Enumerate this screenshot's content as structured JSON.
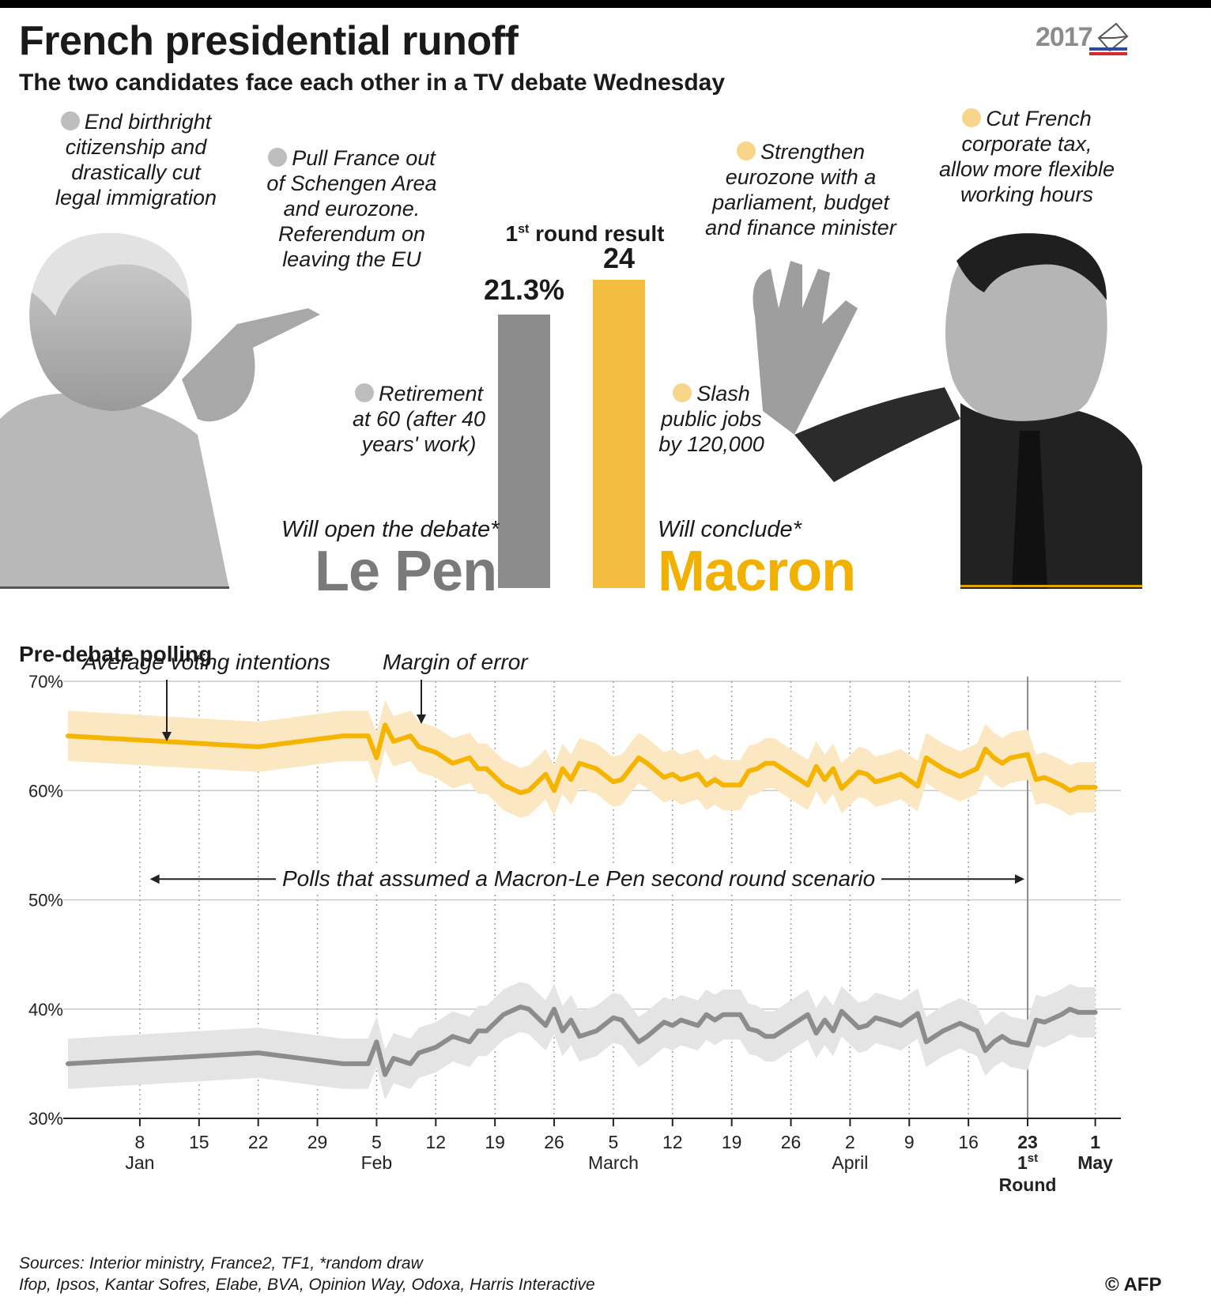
{
  "header": {
    "title": "French presidential runoff",
    "subtitle": "The two candidates face each other in a TV debate Wednesday",
    "badge_year": "2017"
  },
  "lepen": {
    "promises": [
      "End birthright citizenship and drastically cut legal immigration",
      "Pull France out of Schengen Area and eurozone. Referendum on leaving the EU",
      "Retirement at 60 (after 40 years' work)"
    ],
    "debate_role": "Will open the debate*",
    "name": "Le Pen"
  },
  "macron": {
    "promises": [
      "Strengthen eurozone with a parliament, budget and finance minister",
      "Cut French corporate tax, allow more flexible working hours",
      "Slash public jobs by 120,000"
    ],
    "debate_role": "Will conclude*",
    "name": "Macron"
  },
  "first_round": {
    "label_prefix": "1",
    "label_sup": "st",
    "label_suffix": " round result",
    "lepen_label": "21.3%",
    "macron_label": "24",
    "lepen_value": 21.3,
    "macron_value": 24
  },
  "polling": {
    "section_title": "Pre-debate polling",
    "avg_annotation": "Average voting intentions",
    "moe_annotation": "Margin of error",
    "scenario_annotation": "Polls that assumed a Macron-Le Pen second round scenario"
  },
  "chart_data": {
    "type": "line",
    "title": "Pre-debate polling",
    "ylabel": "",
    "ylim": [
      30,
      70
    ],
    "yticks": [
      "70%",
      "60%",
      "50%",
      "40%",
      "30%"
    ],
    "xlim_days": [
      -1.5,
      122
    ],
    "x_ticks": [
      {
        "day": 7,
        "label": "8"
      },
      {
        "day": 14,
        "label": "15"
      },
      {
        "day": 21,
        "label": "22"
      },
      {
        "day": 28,
        "label": "29"
      },
      {
        "day": 35,
        "label": "5"
      },
      {
        "day": 42,
        "label": "12"
      },
      {
        "day": 49,
        "label": "19"
      },
      {
        "day": 56,
        "label": "26"
      },
      {
        "day": 63,
        "label": "5"
      },
      {
        "day": 70,
        "label": "12"
      },
      {
        "day": 77,
        "label": "19"
      },
      {
        "day": 84,
        "label": "26"
      },
      {
        "day": 91,
        "label": "2"
      },
      {
        "day": 98,
        "label": "9"
      },
      {
        "day": 105,
        "label": "16"
      },
      {
        "day": 112,
        "label": "23"
      },
      {
        "day": 120,
        "label": "1"
      }
    ],
    "month_labels": [
      {
        "day": 7,
        "label": "Jan"
      },
      {
        "day": 35,
        "label": "Feb"
      },
      {
        "day": 63,
        "label": "March"
      },
      {
        "day": 91,
        "label": "April"
      },
      {
        "day": 120,
        "label": "May"
      }
    ],
    "first_round_day": 112,
    "first_round_label": [
      "1",
      "st",
      "Round"
    ],
    "scenario_range_days": [
      8,
      112
    ],
    "series": [
      {
        "name": "Macron",
        "color": "#f5b400",
        "band_color": "#fbe8c2",
        "x": [
          -1.5,
          21,
          31,
          34,
          35,
          36,
          37,
          39,
          40,
          42,
          44,
          46,
          47,
          48,
          50,
          52,
          53,
          55,
          56,
          57,
          58,
          59,
          61,
          63,
          64,
          66,
          67,
          69,
          70,
          71,
          73,
          74,
          75,
          76,
          78,
          79,
          80,
          81,
          82,
          84,
          85,
          86,
          87,
          88,
          89,
          90,
          92,
          93,
          94,
          95,
          97,
          99,
          100,
          101,
          102,
          104,
          106,
          107,
          108,
          109,
          110,
          112,
          113,
          114,
          116,
          117,
          118,
          120
        ],
        "values": [
          65,
          64,
          65,
          65,
          63,
          66,
          64.5,
          65,
          64,
          63.5,
          62.5,
          63,
          62,
          62,
          60.5,
          59.8,
          60,
          61.5,
          60,
          62,
          61,
          62.5,
          62,
          60.8,
          61,
          63,
          62.5,
          61.2,
          61.5,
          61,
          61.5,
          60.5,
          61,
          60.5,
          60.5,
          61.8,
          62,
          62.5,
          62.5,
          61.5,
          61,
          60.5,
          62.2,
          61,
          62,
          60.2,
          61.7,
          61.5,
          60.8,
          61,
          61.5,
          60.4,
          63,
          62.5,
          62,
          61.3,
          62,
          63.8,
          63,
          62.5,
          63,
          63.3,
          61,
          61.2,
          60.5,
          60,
          60.3,
          60.3
        ],
        "band": 2.3
      },
      {
        "name": "Le Pen",
        "color": "#8c8c8c",
        "band_color": "#e4e4e4",
        "x": [
          -1.5,
          21,
          31,
          34,
          35,
          36,
          37,
          39,
          40,
          42,
          44,
          46,
          47,
          48,
          50,
          52,
          53,
          55,
          56,
          57,
          58,
          59,
          61,
          63,
          64,
          66,
          67,
          69,
          70,
          71,
          73,
          74,
          75,
          76,
          78,
          79,
          80,
          81,
          82,
          84,
          85,
          86,
          87,
          88,
          89,
          90,
          92,
          93,
          94,
          95,
          97,
          99,
          100,
          101,
          102,
          104,
          106,
          107,
          108,
          109,
          110,
          112,
          113,
          114,
          116,
          117,
          118,
          120
        ],
        "values": [
          35,
          36,
          35,
          35,
          37,
          34,
          35.5,
          35,
          36,
          36.5,
          37.5,
          37,
          38,
          38,
          39.5,
          40.2,
          40,
          38.5,
          40,
          38,
          39,
          37.5,
          38,
          39.2,
          39,
          37,
          37.5,
          38.8,
          38.5,
          39,
          38.5,
          39.5,
          39,
          39.5,
          39.5,
          38.2,
          38,
          37.5,
          37.5,
          38.5,
          39,
          39.5,
          37.8,
          39,
          38,
          39.8,
          38.3,
          38.5,
          39.2,
          39,
          38.5,
          39.6,
          37,
          37.5,
          38,
          38.7,
          38,
          36.2,
          37,
          37.5,
          37,
          36.7,
          39,
          38.8,
          39.5,
          40,
          39.7,
          39.7
        ],
        "band": 2.3
      }
    ]
  },
  "sources": {
    "line1": "Sources: Interior ministry, France2, TF1, *random draw",
    "line2": "Ifop, Ipsos, Kantar Sofres, Elabe, BVA, Opinion Way, Odoxa, Harris Interactive"
  },
  "credit": "© AFP"
}
